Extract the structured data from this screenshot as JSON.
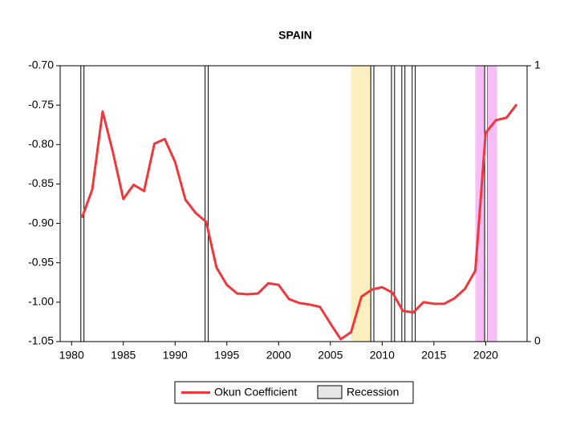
{
  "chart_data": {
    "type": "line",
    "title": "SPAIN",
    "x": [
      1981,
      1982,
      1983,
      1984,
      1985,
      1986,
      1987,
      1988,
      1989,
      1990,
      1991,
      1992,
      1993,
      1994,
      1995,
      1996,
      1997,
      1998,
      1999,
      2000,
      2001,
      2002,
      2003,
      2004,
      2005,
      2006,
      2007,
      2008,
      2009,
      2010,
      2011,
      2012,
      2013,
      2014,
      2015,
      2016,
      2017,
      2018,
      2019,
      2020,
      2021,
      2022,
      2023
    ],
    "series": [
      {
        "name": "Okun Coefficient",
        "color": "#f0373c",
        "values": [
          -0.893,
          -0.857,
          -0.758,
          -0.81,
          -0.869,
          -0.851,
          -0.859,
          -0.799,
          -0.793,
          -0.822,
          -0.87,
          -0.887,
          -0.898,
          -0.956,
          -0.978,
          -0.989,
          -0.99,
          -0.989,
          -0.976,
          -0.978,
          -0.996,
          -1.001,
          -1.003,
          -1.006,
          -1.027,
          -1.047,
          -1.038,
          -0.993,
          -0.984,
          -0.981,
          -0.988,
          -1.011,
          -1.013,
          -1.0,
          -1.002,
          -1.002,
          -0.995,
          -0.983,
          -0.96,
          -0.785,
          -0.769,
          -0.766,
          -0.749
        ]
      }
    ],
    "recession": {
      "name": "Recession",
      "color": "#e6e6e6",
      "periods": [
        {
          "start": 1980.9,
          "end": 1981.2,
          "color": "#ffffff"
        },
        {
          "start": 1992.9,
          "end": 1993.2,
          "color": "#ffffff"
        },
        {
          "start": 2007.0,
          "end": 2008.9,
          "color": "#fdf0c0"
        },
        {
          "start": 2008.9,
          "end": 2009.2,
          "color": "#ffffff"
        },
        {
          "start": 2010.9,
          "end": 2011.2,
          "color": "#ffffff"
        },
        {
          "start": 2011.9,
          "end": 2012.2,
          "color": "#ffffff"
        },
        {
          "start": 2012.9,
          "end": 2013.2,
          "color": "#ffffff"
        },
        {
          "start": 2019.0,
          "end": 2019.9,
          "color": "#f6bdf6"
        },
        {
          "start": 2019.9,
          "end": 2020.2,
          "color": "#ffffff"
        },
        {
          "start": 2020.2,
          "end": 2021.1,
          "color": "#f6bdf6"
        }
      ]
    },
    "xlim": [
      1978.9,
      2024.0
    ],
    "xticks": [
      1980,
      1985,
      1990,
      1995,
      2000,
      2005,
      2010,
      2015,
      2020
    ],
    "ylim": [
      -1.05,
      -0.7
    ],
    "yticks": [
      {
        "value": -1.05,
        "label": "-1.05"
      },
      {
        "value": -1.0,
        "label": "-1.00"
      },
      {
        "value": -0.95,
        "label": "-0.95"
      },
      {
        "value": -0.9,
        "label": "-0.90"
      },
      {
        "value": -0.85,
        "label": "-0.85"
      },
      {
        "value": -0.8,
        "label": "-0.80"
      },
      {
        "value": -0.75,
        "label": "-0.75"
      },
      {
        "value": -0.7,
        "label": "-0.70"
      }
    ],
    "y2lim": [
      0,
      1
    ],
    "y2ticks": [
      0,
      1
    ],
    "legend": "bottom"
  }
}
